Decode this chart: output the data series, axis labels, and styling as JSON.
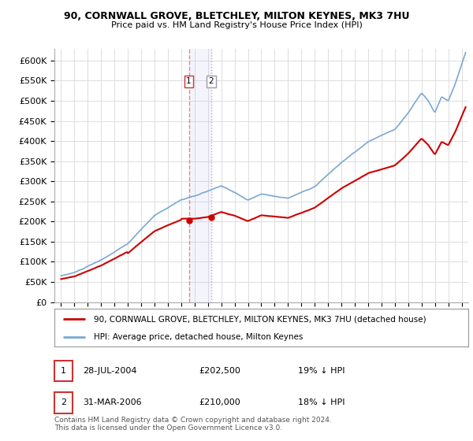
{
  "title1": "90, CORNWALL GROVE, BLETCHLEY, MILTON KEYNES, MK3 7HU",
  "title2": "Price paid vs. HM Land Registry's House Price Index (HPI)",
  "legend_house": "90, CORNWALL GROVE, BLETCHLEY, MILTON KEYNES, MK3 7HU (detached house)",
  "legend_hpi": "HPI: Average price, detached house, Milton Keynes",
  "sale1_date": "28-JUL-2004",
  "sale1_price": "£202,500",
  "sale1_hpi_diff": "19% ↓ HPI",
  "sale1_x": 2004.57,
  "sale1_y": 202500,
  "sale2_date": "31-MAR-2006",
  "sale2_price": "£210,000",
  "sale2_hpi_diff": "18% ↓ HPI",
  "sale2_x": 2006.25,
  "sale2_y": 210000,
  "house_color": "#cc0000",
  "hpi_color": "#7aa8d2",
  "vline1_color": "#dd8888",
  "vline2_color": "#aaaacc",
  "grid_color": "#dddddd",
  "bg_color": "#ffffff",
  "footnote1": "Contains HM Land Registry data © Crown copyright and database right 2024.",
  "footnote2": "This data is licensed under the Open Government Licence v3.0.",
  "ylim": [
    0,
    630000
  ],
  "yticks": [
    0,
    50000,
    100000,
    150000,
    200000,
    250000,
    300000,
    350000,
    400000,
    450000,
    500000,
    550000,
    600000
  ],
  "xlim": [
    1994.5,
    2025.5
  ]
}
